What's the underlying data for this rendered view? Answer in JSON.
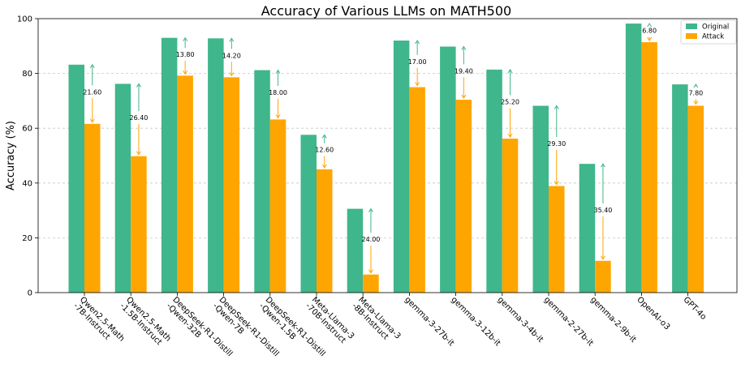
{
  "chart_data": {
    "type": "bar",
    "title": "Accuracy of Various LLMs on MATH500",
    "xlabel": "",
    "ylabel": "Accuracy (%)",
    "ylim": [
      0,
      100
    ],
    "yticks": [
      0,
      20,
      40,
      60,
      80,
      100
    ],
    "grid": "horizontal dashed",
    "legend_position": "top-right",
    "categories": [
      "Qwen2.5-Math\n-7B-Instruct",
      "Qwen2.5-Math\n-1.5B-Instruct",
      "DeepSeek-R1-Distill\n-Qwen-32B",
      "DeepSeek-R1-Distill\n-Qwen-7B",
      "DeepSeek-R1-Distill\n-Qwen-1.5B",
      "Meta-Llama-3\n-70B-Instruct",
      "Meta-Llama-3\n-8B-Instruct",
      "gemma-3-27b-it",
      "gemma-3-12b-it",
      "gemma-3-4b-it",
      "gemma-2-27b-it",
      "gemma-2-9b-it",
      "OpenAI-o3",
      "GPT-4o"
    ],
    "series": [
      {
        "name": "Original",
        "color": "#3fb68b",
        "values": [
          83.2,
          76.2,
          93.0,
          92.8,
          81.2,
          57.6,
          30.6,
          92.0,
          89.8,
          81.4,
          68.2,
          47.0,
          98.2,
          76.0
        ]
      },
      {
        "name": "Attack",
        "color": "#ffa500",
        "values": [
          61.6,
          49.8,
          79.2,
          78.6,
          63.2,
          45.0,
          6.6,
          75.0,
          70.4,
          56.2,
          38.9,
          11.6,
          91.4,
          68.2
        ]
      }
    ],
    "differences": [
      "21.60",
      "26.40",
      "13.80",
      "14.20",
      "18.00",
      "12.60",
      "24.00",
      "17.00",
      "19.40",
      "25.20",
      "29.30",
      "35.40",
      "6.80",
      "7.80"
    ],
    "arrow_color": "#ffa500",
    "arrow_head_color": "#3fb68b"
  }
}
